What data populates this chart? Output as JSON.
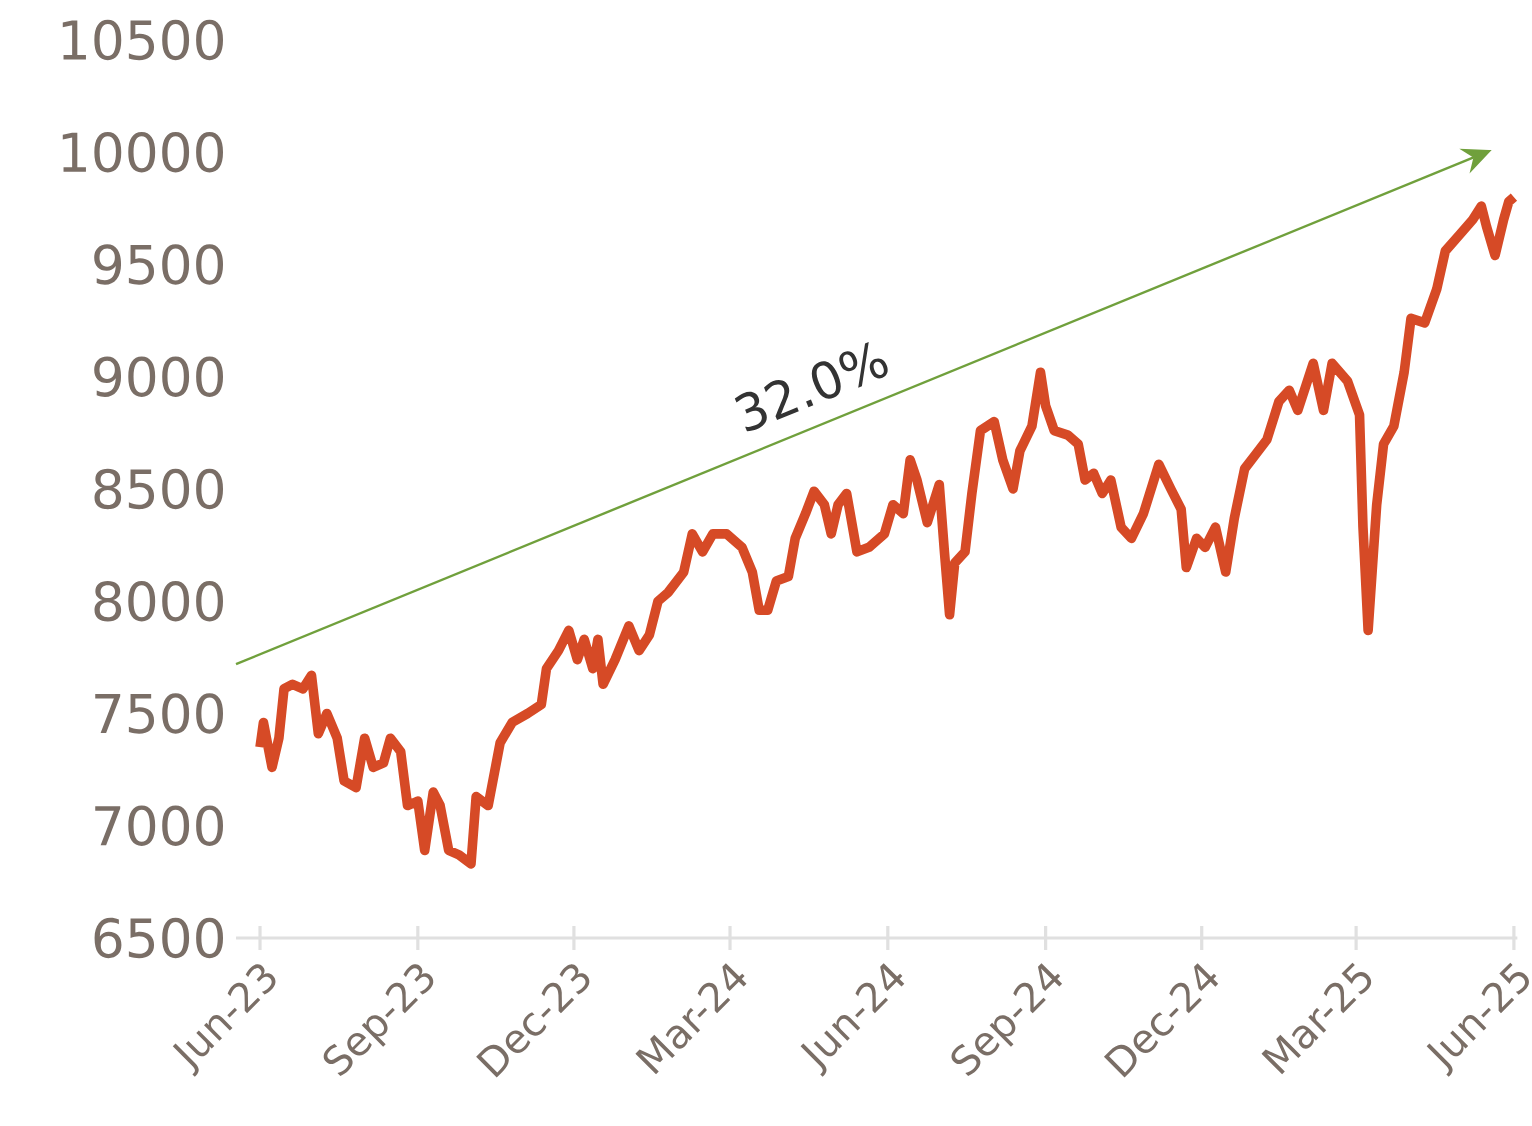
{
  "chart_data": {
    "type": "line",
    "xlim": [
      "2023-05-18",
      "2025-06-03"
    ],
    "xticks": [
      {
        "value": "2023-06-01",
        "label": "Jun-23"
      },
      {
        "value": "2023-09-01",
        "label": "Sep-23"
      },
      {
        "value": "2023-12-01",
        "label": "Dec-23"
      },
      {
        "value": "2024-03-01",
        "label": "Mar-24"
      },
      {
        "value": "2024-06-01",
        "label": "Jun-24"
      },
      {
        "value": "2024-09-01",
        "label": "Sep-24"
      },
      {
        "value": "2024-12-01",
        "label": "Dec-24"
      },
      {
        "value": "2025-03-01",
        "label": "Mar-25"
      },
      {
        "value": "2025-06-01",
        "label": "Jun-25"
      }
    ],
    "ylim": [
      6500,
      10500
    ],
    "yticks": [
      6500,
      7000,
      7500,
      8000,
      8500,
      9000,
      9500,
      10000,
      10500
    ],
    "grid": false,
    "annotations": [
      "32.0%"
    ],
    "series": [
      {
        "color": "#d64a26",
        "x": [
          "2023-06-01",
          "2023-06-03",
          "2023-06-08",
          "2023-06-12",
          "2023-06-15",
          "2023-06-20",
          "2023-06-26",
          "2023-07-01",
          "2023-07-05",
          "2023-07-10",
          "2023-07-16",
          "2023-07-20",
          "2023-07-27",
          "2023-08-01",
          "2023-08-06",
          "2023-08-12",
          "2023-08-16",
          "2023-08-22",
          "2023-08-26",
          "2023-09-01",
          "2023-09-05",
          "2023-09-10",
          "2023-09-14",
          "2023-09-19",
          "2023-09-25",
          "2023-10-02",
          "2023-10-05",
          "2023-10-12",
          "2023-10-19",
          "2023-10-26",
          "2023-11-04",
          "2023-11-12",
          "2023-11-15",
          "2023-11-22",
          "2023-11-28",
          "2023-12-03",
          "2023-12-07",
          "2023-12-12",
          "2023-12-15",
          "2023-12-18",
          "2023-12-25",
          "2024-01-02",
          "2024-01-08",
          "2024-01-14",
          "2024-01-19",
          "2024-01-25",
          "2024-02-03",
          "2024-02-08",
          "2024-02-14",
          "2024-02-20",
          "2024-02-28",
          "2024-03-08",
          "2024-03-14",
          "2024-03-18",
          "2024-03-23",
          "2024-03-28",
          "2024-04-04",
          "2024-04-08",
          "2024-04-14",
          "2024-04-19",
          "2024-04-25",
          "2024-04-29",
          "2024-05-03",
          "2024-05-08",
          "2024-05-14",
          "2024-05-21",
          "2024-05-30",
          "2024-06-04",
          "2024-06-10",
          "2024-06-14",
          "2024-06-18",
          "2024-06-24",
          "2024-07-01",
          "2024-07-04",
          "2024-07-07",
          "2024-07-10",
          "2024-07-16",
          "2024-07-20",
          "2024-07-25",
          "2024-08-02",
          "2024-08-07",
          "2024-08-13",
          "2024-08-17",
          "2024-08-24",
          "2024-08-29",
          "2024-09-01",
          "2024-09-06",
          "2024-09-14",
          "2024-09-20",
          "2024-09-24",
          "2024-09-29",
          "2024-10-04",
          "2024-10-09",
          "2024-10-15",
          "2024-10-21",
          "2024-10-28",
          "2024-11-06",
          "2024-11-13",
          "2024-11-19",
          "2024-11-22",
          "2024-11-28",
          "2024-12-03",
          "2024-12-09",
          "2024-12-15",
          "2024-12-20",
          "2024-12-26",
          "2025-01-01",
          "2025-01-08",
          "2025-01-15",
          "2025-01-21",
          "2025-01-26",
          "2025-02-04",
          "2025-02-10",
          "2025-02-15",
          "2025-02-24",
          "2025-03-03",
          "2025-03-05",
          "2025-03-08",
          "2025-03-13",
          "2025-03-17",
          "2025-03-23",
          "2025-03-29",
          "2025-04-02",
          "2025-04-10",
          "2025-04-17",
          "2025-04-22",
          "2025-04-30",
          "2025-05-08",
          "2025-05-13",
          "2025-05-16",
          "2025-05-21",
          "2025-05-26",
          "2025-05-29",
          "2025-06-01"
        ],
        "values": [
          7350,
          7460,
          7260,
          7390,
          7610,
          7630,
          7610,
          7670,
          7410,
          7500,
          7390,
          7200,
          7170,
          7390,
          7260,
          7280,
          7390,
          7330,
          7090,
          7110,
          6890,
          7150,
          7090,
          6890,
          6870,
          6830,
          7130,
          7090,
          7370,
          7460,
          7500,
          7540,
          7700,
          7780,
          7870,
          7740,
          7830,
          7700,
          7830,
          7630,
          7740,
          7890,
          7780,
          7850,
          8000,
          8040,
          8130,
          8300,
          8220,
          8300,
          8300,
          8240,
          8130,
          7960,
          7960,
          8090,
          8110,
          8280,
          8390,
          8490,
          8430,
          8300,
          8430,
          8480,
          8220,
          8240,
          8300,
          8430,
          8390,
          8630,
          8540,
          8350,
          8520,
          8220,
          7940,
          8170,
          8220,
          8480,
          8760,
          8800,
          8630,
          8500,
          8670,
          8780,
          9020,
          8870,
          8760,
          8740,
          8700,
          8540,
          8570,
          8480,
          8540,
          8330,
          8280,
          8390,
          8610,
          8500,
          8410,
          8150,
          8280,
          8240,
          8330,
          8130,
          8370,
          8590,
          8650,
          8720,
          8890,
          8940,
          8850,
          9060,
          8850,
          9060,
          8980,
          8830,
          8330,
          7870,
          8430,
          8700,
          8780,
          9020,
          9260,
          9240,
          9390,
          9560,
          9630,
          9700,
          9760,
          9670,
          9540,
          9700,
          9780,
          9800
        ]
      }
    ]
  }
}
